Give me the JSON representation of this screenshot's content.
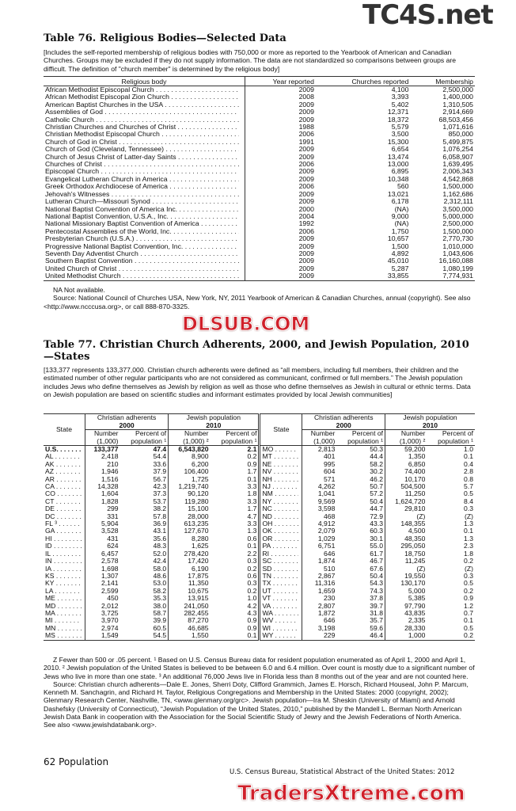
{
  "watermarks": [
    "TC4S.net",
    "DLSUB.COM",
    "TradersXtreme.com"
  ],
  "table76": {
    "title": "Table 76. Religious Bodies—Selected Data",
    "headnote": "[Includes the self-reported membership of religious bodies with 750,000 or more as reported to the Yearbook of American and Canadian Churches. Groups may be excluded if they do not supply information. The data are not standardized so comparisons between groups are difficult. The definition of \"church member\" is determined by the religious body]",
    "columns": [
      "Religious body",
      "Year reported",
      "Churches reported",
      "Membership"
    ],
    "rows": [
      [
        "African Methodist Episcopal Church",
        "2009",
        "4,100",
        "2,500,000"
      ],
      [
        "African Methodist Episcopal Zion Church",
        "2008",
        "3,393",
        "1,400,000"
      ],
      [
        "American Baptist Churches in the USA",
        "2009",
        "5,402",
        "1,310,505"
      ],
      [
        "Assemblies of God",
        "2009",
        "12,371",
        "2,914,669"
      ],
      [
        "Catholic Church",
        "2009",
        "18,372",
        "68,503,456"
      ],
      [
        "Christian Churches and Churches of Christ",
        "1988",
        "5,579",
        "1,071,616"
      ],
      [
        "Christian Methodist Episcopal Church",
        "2006",
        "3,500",
        "850,000"
      ],
      [
        "Church of God in Christ",
        "1991",
        "15,300",
        "5,499,875"
      ],
      [
        "Church of God (Cleveland, Tennessee)",
        "2009",
        "6,654",
        "1,076,254"
      ],
      [
        "Church of Jesus Christ of Latter-day Saints",
        "2009",
        "13,474",
        "6,058,907"
      ],
      [
        "Churches of Christ",
        "2006",
        "13,000",
        "1,639,495"
      ],
      [
        "Episcopal Church",
        "2009",
        "6,895",
        "2,006,343"
      ],
      [
        "Evangelical Lutheran Church in America",
        "2009",
        "10,348",
        "4,542,868"
      ],
      [
        "Greek Orthodox Archdiocese of America",
        "2006",
        "560",
        "1,500,000"
      ],
      [
        "Jehovah's Witnesses",
        "2009",
        "13,021",
        "1,162,686"
      ],
      [
        "Lutheran Church—Missouri Synod",
        "2009",
        "6,178",
        "2,312,111"
      ],
      [
        "National Baptist Convention of America Inc.",
        "2000",
        "(NA)",
        "3,500,000"
      ],
      [
        "National Baptist Convention, U.S.A., Inc.",
        "2004",
        "9,000",
        "5,000,000"
      ],
      [
        "National Missionary Baptist Convention of America",
        "1992",
        "(NA)",
        "2,500,000"
      ],
      [
        "Pentecostal Assemblies of the World, Inc.",
        "2006",
        "1,750",
        "1,500,000"
      ],
      [
        "Presbyterian Church (U.S.A.)",
        "2009",
        "10,657",
        "2,770,730"
      ],
      [
        "Progressive National Baptist Convention, Inc.",
        "2009",
        "1,500",
        "1,010,000"
      ],
      [
        "Seventh Day Adventist Church",
        "2009",
        "4,892",
        "1,043,606"
      ],
      [
        "Southern Baptist Convention",
        "2009",
        "45,010",
        "16,160,088"
      ],
      [
        "United Church of Christ",
        "2009",
        "5,287",
        "1,080,199"
      ],
      [
        "United Methodist Church",
        "2009",
        "33,855",
        "7,774,931"
      ]
    ],
    "footnote": "NA Not available.",
    "source": "Source: National Council of Churches USA, New York, NY, 2011 Yearbook of American & Canadian Churches, annual (copyright). See also <http://www.ncccusa.org>, or call 888-870-3325."
  },
  "table77": {
    "title": "Table 77. Christian Church Adherents, 2000, and Jewish Population, 2010—States",
    "headnote": "[133,377 represents 133,377,000. Christian church adherents were defined as “all members, including full members, their children and the estimated number of other regular participants who are not considered as communicant, confirmed or full members.” The Jewish population includes Jews who define themselves as Jewish by religion as well as those who define themselves as Jewish in cultural or ethnic terms. Data on Jewish population are based on scientific studies and informant estimates provided by local Jewish communities]",
    "headers": {
      "state": "State",
      "christian": "Christian adherents",
      "christian_year": "2000",
      "jewish": "Jewish population",
      "jewish_year": "2010",
      "number": "Number",
      "number_unit": "(1,000)",
      "number_unit2": "(1,000) ²",
      "percent": "Percent of",
      "percent_unit": "population ¹"
    },
    "left": [
      [
        "U.S.",
        "133,377",
        "47.4",
        "6,543,820",
        "2.1"
      ],
      [
        "AL",
        "2,418",
        "54.4",
        "8,900",
        "0.2"
      ],
      [
        "AK",
        "210",
        "33.6",
        "6,200",
        "0.9"
      ],
      [
        "AZ",
        "1,946",
        "37.9",
        "106,400",
        "1.7"
      ],
      [
        "AR",
        "1,516",
        "56.7",
        "1,725",
        "0.1"
      ],
      [
        "CA",
        "14,328",
        "42.3",
        "1,219,740",
        "3.3"
      ],
      [
        "CO",
        "1,604",
        "37.3",
        "90,120",
        "1.8"
      ],
      [
        "CT",
        "1,828",
        "53.7",
        "119,280",
        "3.3"
      ],
      [
        "DE",
        "299",
        "38.2",
        "15,100",
        "1.7"
      ],
      [
        "DC",
        "331",
        "57.8",
        "28,000",
        "4.7"
      ],
      [
        "FL ³",
        "5,904",
        "36.9",
        "613,235",
        "3.3"
      ],
      [
        "GA",
        "3,528",
        "43.1",
        "127,670",
        "1.3"
      ],
      [
        "HI",
        "431",
        "35.6",
        "8,280",
        "0.6"
      ],
      [
        "ID",
        "624",
        "48.3",
        "1,625",
        "0.1"
      ],
      [
        "IL",
        "6,457",
        "52.0",
        "278,420",
        "2.2"
      ],
      [
        "IN",
        "2,578",
        "42.4",
        "17,420",
        "0.3"
      ],
      [
        "IA",
        "1,698",
        "58.0",
        "6,190",
        "0.2"
      ],
      [
        "KS",
        "1,307",
        "48.6",
        "17,875",
        "0.6"
      ],
      [
        "KY",
        "2,141",
        "53.0",
        "11,350",
        "0.3"
      ],
      [
        "LA",
        "2,599",
        "58.2",
        "10,675",
        "0.2"
      ],
      [
        "ME",
        "450",
        "35.3",
        "13,915",
        "1.0"
      ],
      [
        "MD",
        "2,012",
        "38.0",
        "241,050",
        "4.2"
      ],
      [
        "MA",
        "3,725",
        "58.7",
        "282,455",
        "4.3"
      ],
      [
        "MI",
        "3,970",
        "39.9",
        "87,270",
        "0.9"
      ],
      [
        "MN",
        "2,974",
        "60.5",
        "46,685",
        "0.9"
      ],
      [
        "MS",
        "1,549",
        "54.5",
        "1,550",
        "0.1"
      ]
    ],
    "right": [
      [
        "MO",
        "2,813",
        "50.3",
        "59,200",
        "1.0"
      ],
      [
        "MT",
        "401",
        "44.4",
        "1,350",
        "0.1"
      ],
      [
        "NE",
        "995",
        "58.2",
        "6,850",
        "0.4"
      ],
      [
        "NV",
        "604",
        "30.2",
        "74,400",
        "2.8"
      ],
      [
        "NH",
        "571",
        "46.2",
        "10,170",
        "0.8"
      ],
      [
        "NJ",
        "4,262",
        "50.7",
        "504,500",
        "5.7"
      ],
      [
        "NM",
        "1,041",
        "57.2",
        "11,250",
        "0.5"
      ],
      [
        "NY",
        "9,569",
        "50.4",
        "1,624,720",
        "8.4"
      ],
      [
        "NC",
        "3,598",
        "44.7",
        "29,810",
        "0.3"
      ],
      [
        "ND",
        "468",
        "72.9",
        "(Z)",
        "(Z)"
      ],
      [
        "OH",
        "4,912",
        "43.3",
        "148,355",
        "1.3"
      ],
      [
        "OK",
        "2,079",
        "60.3",
        "4,500",
        "0.1"
      ],
      [
        "OR",
        "1,029",
        "30.1",
        "48,350",
        "1.3"
      ],
      [
        "PA",
        "6,751",
        "55.0",
        "295,050",
        "2.3"
      ],
      [
        "RI",
        "646",
        "61.7",
        "18,750",
        "1.8"
      ],
      [
        "SC",
        "1,874",
        "46.7",
        "11,245",
        "0.2"
      ],
      [
        "SD",
        "510",
        "67.6",
        "(Z)",
        "(Z)"
      ],
      [
        "TN",
        "2,867",
        "50.4",
        "19,550",
        "0.3"
      ],
      [
        "TX",
        "11,316",
        "54.3",
        "130,170",
        "0.5"
      ],
      [
        "UT",
        "1,659",
        "74.3",
        "5,000",
        "0.2"
      ],
      [
        "VT",
        "230",
        "37.8",
        "5,385",
        "0.9"
      ],
      [
        "VA",
        "2,807",
        "39.7",
        "97,790",
        "1.2"
      ],
      [
        "WA",
        "1,872",
        "31.8",
        "43,835",
        "0.7"
      ],
      [
        "WV",
        "646",
        "35.7",
        "2,335",
        "0.1"
      ],
      [
        "WI",
        "3,198",
        "59.6",
        "28,330",
        "0.5"
      ],
      [
        "WY",
        "229",
        "46.4",
        "1,000",
        "0.2"
      ]
    ],
    "footnote": "Z Fewer than 500 or .05 percent. ¹ Based on U.S. Census Bureau data for resident population enumerated as of April 1, 2000 and April 1, 2010. ² Jewish population of the United States is believed to be between 6.0 and 6.4 million. Over count is mostly due to a significant number of Jews who live in more than one state. ³ An additional 76,000 Jews live in Florida less than 8 months out of the year and are not counted here.",
    "source": "Source: Christian church adherents—Dale E. Jones, Sherri Doty, Clifford Grammich, James E. Horsch, Richard Houseal, John P. Marcum, Kenneth M. Sanchagrin, and Richard H. Taylor, Religious Congregations and Membership in the United States: 2000 (copyright, 2002); Glenmary Research Center, Nashville, TN, <www.glenmary.org/grc>. Jewish population—Ira M. Sheskin (University of Miami) and Arnold Dashefsky (University of Connecticut), “Jewish Population of the United States, 2010,” published by the Mandell L. Berman North American Jewish Data Bank in cooperation with the Association for the Social Scientific Study of Jewry and the Jewish Federations of North America. See also <www.jewishdatabank.org>."
  },
  "footer": {
    "page": "62  Population",
    "publication": "U.S. Census Bureau, Statistical Abstract of the United States: 2012"
  }
}
